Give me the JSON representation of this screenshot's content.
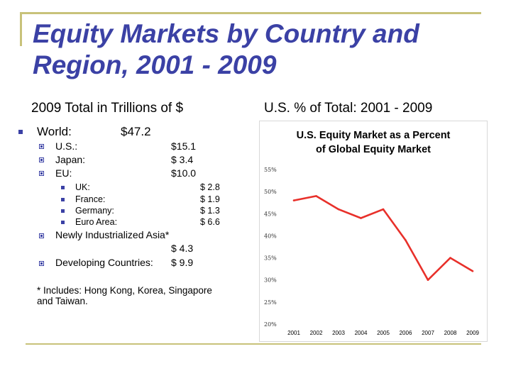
{
  "title": "Equity Markets by Country and Region, 2001 - 2009",
  "left_heading": "2009 Total in Trillions of $",
  "right_heading": "U.S. % of Total: 2001 - 2009",
  "world": {
    "label": "World:",
    "value": "$47.2"
  },
  "regions": [
    {
      "label": "U.S.:",
      "value": "$15.1"
    },
    {
      "label": "Japan:",
      "value": "$ 3.4"
    },
    {
      "label": "EU:",
      "value": "$10.0"
    }
  ],
  "eu_members": [
    {
      "label": "UK:",
      "value": "$ 2.8"
    },
    {
      "label": "France:",
      "value": "$ 1.9"
    },
    {
      "label": "Germany:",
      "value": "$ 1.3"
    },
    {
      "label": "Euro Area:",
      "value": "$ 6.6"
    }
  ],
  "nia": {
    "label": "Newly Industrialized Asia*",
    "value": "$ 4.3"
  },
  "developing": {
    "label": "Developing Countries:",
    "value": "$  9.9"
  },
  "footnote_line1": "* Includes: Hong Kong, Korea, Singapore",
  "footnote_line2": "and Taiwan.",
  "colors": {
    "title": "#3b41a5",
    "bullet": "#3b41a5",
    "frame": "#c8c27a",
    "series": "#e8302a"
  },
  "chart_data": {
    "type": "line",
    "title": "U.S. Equity Market as a Percent of Global Equity Market",
    "title_line1": "U.S. Equity Market as a Percent",
    "title_line2": "of Global Equity Market",
    "categories": [
      "2001",
      "2002",
      "2003",
      "2004",
      "2005",
      "2006",
      "2007",
      "2008",
      "2009"
    ],
    "values": [
      48,
      49,
      46,
      44,
      46,
      39,
      30,
      35,
      32
    ],
    "ylim": [
      20,
      55
    ],
    "yticks": [
      "20%",
      "25%",
      "30%",
      "35%",
      "40%",
      "45%",
      "50%",
      "55%"
    ],
    "ytick_values": [
      20,
      25,
      30,
      35,
      40,
      45,
      50,
      55
    ],
    "xlabel": "",
    "ylabel": "",
    "grid": false,
    "legend": false
  }
}
